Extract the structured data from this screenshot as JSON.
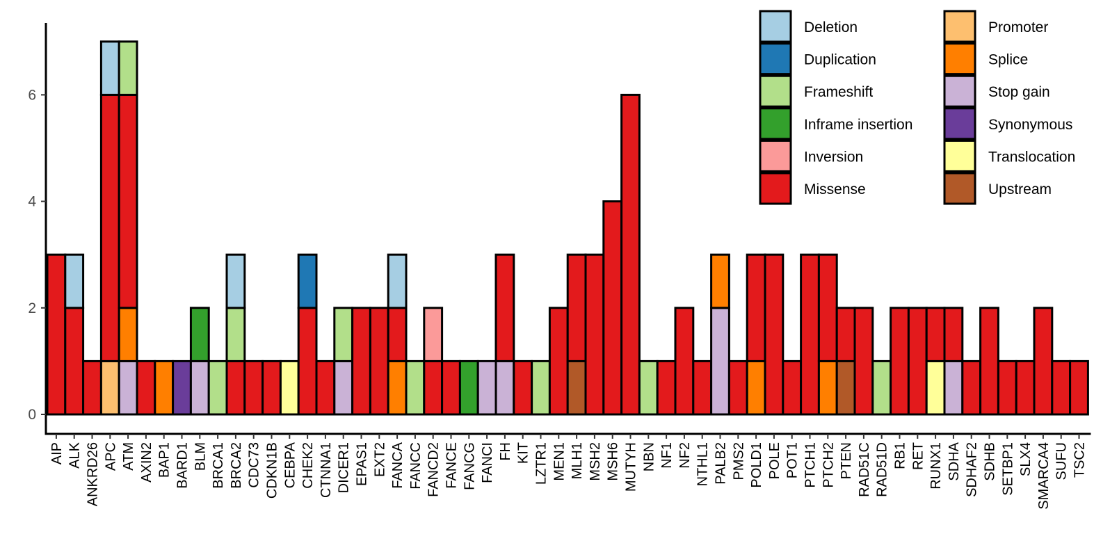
{
  "chart_data": {
    "type": "bar",
    "stacked": true,
    "title": "",
    "xlabel": "",
    "ylabel": "",
    "ylim": [
      0,
      7
    ],
    "yticks": [
      0,
      2,
      4,
      6
    ],
    "grid": false,
    "legend_position": "top-right",
    "categories": [
      "AIP",
      "ALK",
      "ANKRD26",
      "APC",
      "ATM",
      "AXIN2",
      "BAP1",
      "BARD1",
      "BLM",
      "BRCA1",
      "BRCA2",
      "CDC73",
      "CDKN1B",
      "CEBPA",
      "CHEK2",
      "CTNNA1",
      "DICER1",
      "EPAS1",
      "EXT2",
      "FANCA",
      "FANCC",
      "FANCD2",
      "FANCE",
      "FANCG",
      "FANCI",
      "FH",
      "KIT",
      "LZTR1",
      "MEN1",
      "MLH1",
      "MSH2",
      "MSH6",
      "MUTYH",
      "NBN",
      "NF1",
      "NF2",
      "NTHL1",
      "PALB2",
      "PMS2",
      "POLD1",
      "POLE",
      "POT1",
      "PTCH1",
      "PTCH2",
      "PTEN",
      "RAD51C",
      "RAD51D",
      "RB1",
      "RET",
      "RUNX1",
      "SDHA",
      "SDHAF2",
      "SDHB",
      "SETBP1",
      "SLX4",
      "SMARCA4",
      "SUFU",
      "TSC2"
    ],
    "legend": [
      {
        "name": "Deletion",
        "color": "#a6cee3"
      },
      {
        "name": "Duplication",
        "color": "#1f78b4"
      },
      {
        "name": "Frameshift",
        "color": "#b2df8a"
      },
      {
        "name": "Inframe insertion",
        "color": "#33a02c"
      },
      {
        "name": "Inversion",
        "color": "#fb9a99"
      },
      {
        "name": "Missense",
        "color": "#e31a1c"
      },
      {
        "name": "Promoter",
        "color": "#fdbf6f"
      },
      {
        "name": "Splice",
        "color": "#ff7f00"
      },
      {
        "name": "Stop gain",
        "color": "#cab2d6"
      },
      {
        "name": "Synonymous",
        "color": "#6a3d9a"
      },
      {
        "name": "Translocation",
        "color": "#ffff99"
      },
      {
        "name": "Upstream",
        "color": "#b15928"
      }
    ],
    "stacks": [
      [
        [
          "Missense",
          3
        ]
      ],
      [
        [
          "Missense",
          2
        ],
        [
          "Deletion",
          1
        ]
      ],
      [
        [
          "Missense",
          1
        ]
      ],
      [
        [
          "Promoter",
          1
        ],
        [
          "Missense",
          5
        ],
        [
          "Deletion",
          1
        ]
      ],
      [
        [
          "Stop gain",
          1
        ],
        [
          "Splice",
          1
        ],
        [
          "Missense",
          4
        ],
        [
          "Frameshift",
          1
        ]
      ],
      [
        [
          "Missense",
          1
        ]
      ],
      [
        [
          "Splice",
          1
        ]
      ],
      [
        [
          "Synonymous",
          1
        ]
      ],
      [
        [
          "Stop gain",
          1
        ],
        [
          "Inframe insertion",
          1
        ]
      ],
      [
        [
          "Frameshift",
          1
        ]
      ],
      [
        [
          "Missense",
          1
        ],
        [
          "Frameshift",
          1
        ],
        [
          "Deletion",
          1
        ]
      ],
      [
        [
          "Missense",
          1
        ]
      ],
      [
        [
          "Missense",
          1
        ]
      ],
      [
        [
          "Translocation",
          1
        ]
      ],
      [
        [
          "Missense",
          2
        ],
        [
          "Duplication",
          1
        ]
      ],
      [
        [
          "Missense",
          1
        ]
      ],
      [
        [
          "Stop gain",
          1
        ],
        [
          "Frameshift",
          1
        ]
      ],
      [
        [
          "Missense",
          2
        ]
      ],
      [
        [
          "Missense",
          2
        ]
      ],
      [
        [
          "Splice",
          1
        ],
        [
          "Missense",
          1
        ],
        [
          "Deletion",
          1
        ]
      ],
      [
        [
          "Frameshift",
          1
        ]
      ],
      [
        [
          "Missense",
          1
        ],
        [
          "Inversion",
          1
        ]
      ],
      [
        [
          "Missense",
          1
        ]
      ],
      [
        [
          "Inframe insertion",
          1
        ]
      ],
      [
        [
          "Stop gain",
          1
        ]
      ],
      [
        [
          "Stop gain",
          1
        ],
        [
          "Missense",
          2
        ]
      ],
      [
        [
          "Missense",
          1
        ]
      ],
      [
        [
          "Frameshift",
          1
        ]
      ],
      [
        [
          "Missense",
          2
        ]
      ],
      [
        [
          "Upstream",
          1
        ],
        [
          "Missense",
          2
        ]
      ],
      [
        [
          "Missense",
          3
        ]
      ],
      [
        [
          "Missense",
          4
        ]
      ],
      [
        [
          "Missense",
          6
        ]
      ],
      [
        [
          "Frameshift",
          1
        ]
      ],
      [
        [
          "Missense",
          1
        ]
      ],
      [
        [
          "Missense",
          2
        ]
      ],
      [
        [
          "Missense",
          1
        ]
      ],
      [
        [
          "Stop gain",
          2
        ],
        [
          "Splice",
          1
        ]
      ],
      [
        [
          "Missense",
          1
        ]
      ],
      [
        [
          "Splice",
          1
        ],
        [
          "Missense",
          2
        ]
      ],
      [
        [
          "Missense",
          3
        ]
      ],
      [
        [
          "Missense",
          1
        ]
      ],
      [
        [
          "Missense",
          3
        ]
      ],
      [
        [
          "Splice",
          1
        ],
        [
          "Missense",
          2
        ]
      ],
      [
        [
          "Upstream",
          1
        ],
        [
          "Missense",
          1
        ]
      ],
      [
        [
          "Missense",
          2
        ]
      ],
      [
        [
          "Frameshift",
          1
        ]
      ],
      [
        [
          "Missense",
          2
        ]
      ],
      [
        [
          "Missense",
          2
        ]
      ],
      [
        [
          "Translocation",
          1
        ],
        [
          "Missense",
          1
        ]
      ],
      [
        [
          "Stop gain",
          1
        ],
        [
          "Missense",
          1
        ]
      ],
      [
        [
          "Missense",
          1
        ]
      ],
      [
        [
          "Missense",
          2
        ]
      ],
      [
        [
          "Missense",
          1
        ]
      ],
      [
        [
          "Missense",
          1
        ]
      ],
      [
        [
          "Missense",
          2
        ]
      ],
      [
        [
          "Missense",
          1
        ]
      ],
      [
        [
          "Missense",
          1
        ]
      ]
    ]
  }
}
